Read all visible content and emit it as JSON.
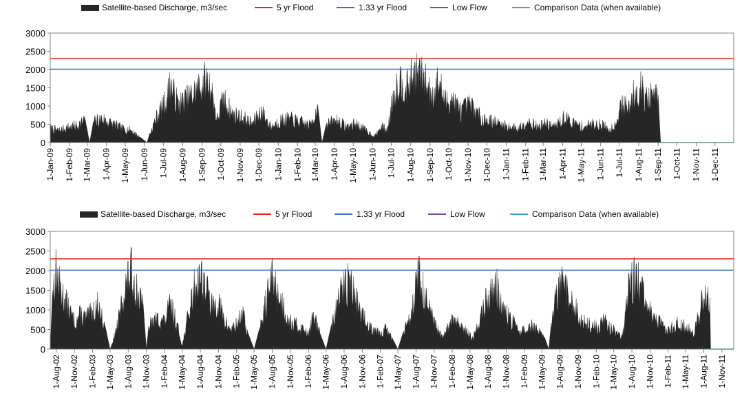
{
  "chart_data": [
    {
      "type": "area",
      "legend": [
        {
          "label": "Satellite-based Discharge, m3/sec",
          "color": "#262626",
          "kind": "area"
        },
        {
          "label": "5 yr Flood",
          "color": "#e8231b",
          "kind": "line"
        },
        {
          "label": "1.33 yr Flood",
          "color": "#3b6fc4",
          "kind": "line"
        },
        {
          "label": "Low Flow",
          "color": "#7b4aa0",
          "kind": "line"
        },
        {
          "label": "Comparison Data (when available)",
          "color": "#35a7c9",
          "kind": "line"
        }
      ],
      "ylim": [
        0,
        3000
      ],
      "yticks": [
        "0",
        "500",
        "1000",
        "1500",
        "2000",
        "2500",
        "3000"
      ],
      "xlim": [
        "2009-01-01",
        "2011-12-31"
      ],
      "xticks": [
        "1-Jan-09",
        "1-Feb-09",
        "1-Mar-09",
        "1-Apr-09",
        "1-May-09",
        "1-Jun-09",
        "1-Jul-09",
        "1-Aug-09",
        "1-Sep-09",
        "1-Oct-09",
        "1-Nov-09",
        "1-Dec-09",
        "1-Jan-10",
        "1-Feb-10",
        "1-Mar-10",
        "1-Apr-10",
        "1-May-10",
        "1-Jun-10",
        "1-Jul-10",
        "1-Aug-10",
        "1-Sep-10",
        "1-Oct-10",
        "1-Nov-10",
        "1-Dec-10",
        "1-Jan-11",
        "1-Feb-11",
        "1-Mar-11",
        "1-Apr-11",
        "1-May-11",
        "1-Jun-11",
        "1-Jul-11",
        "1-Aug-11",
        "1-Sep-11",
        "1-Oct-11",
        "1-Nov-11",
        "1-Dec-11"
      ],
      "flood_5yr": 2300,
      "flood_133yr": 2010,
      "discharge_series": {
        "name": "Satellite-based Discharge, m3/sec",
        "points": [
          [
            "2009-01-01",
            450
          ],
          [
            "2009-01-15",
            380
          ],
          [
            "2009-02-01",
            500
          ],
          [
            "2009-02-15",
            550
          ],
          [
            "2009-02-25",
            720
          ],
          [
            "2009-03-05",
            0
          ],
          [
            "2009-03-12",
            650
          ],
          [
            "2009-03-25",
            750
          ],
          [
            "2009-04-10",
            600
          ],
          [
            "2009-04-25",
            450
          ],
          [
            "2009-05-10",
            400
          ],
          [
            "2009-05-25",
            150
          ],
          [
            "2009-06-05",
            0
          ],
          [
            "2009-06-10",
            300
          ],
          [
            "2009-06-20",
            800
          ],
          [
            "2009-07-05",
            1300
          ],
          [
            "2009-07-12",
            1850
          ],
          [
            "2009-07-25",
            1200
          ],
          [
            "2009-08-10",
            1400
          ],
          [
            "2009-08-25",
            1700
          ],
          [
            "2009-09-05",
            1950
          ],
          [
            "2009-09-15",
            1800
          ],
          [
            "2009-09-25",
            700
          ],
          [
            "2009-10-05",
            1400
          ],
          [
            "2009-10-20",
            900
          ],
          [
            "2009-11-05",
            800
          ],
          [
            "2009-11-20",
            600
          ],
          [
            "2009-12-05",
            1000
          ],
          [
            "2009-12-20",
            500
          ],
          [
            "2010-01-05",
            700
          ],
          [
            "2010-01-20",
            750
          ],
          [
            "2010-02-05",
            650
          ],
          [
            "2010-02-20",
            550
          ],
          [
            "2010-03-05",
            1050
          ],
          [
            "2010-03-12",
            0
          ],
          [
            "2010-03-20",
            600
          ],
          [
            "2010-04-05",
            700
          ],
          [
            "2010-04-20",
            500
          ],
          [
            "2010-05-05",
            600
          ],
          [
            "2010-05-20",
            400
          ],
          [
            "2010-06-05",
            200
          ],
          [
            "2010-06-15",
            500
          ],
          [
            "2010-06-25",
            400
          ],
          [
            "2010-07-05",
            1600
          ],
          [
            "2010-07-15",
            2000
          ],
          [
            "2010-07-25",
            1700
          ],
          [
            "2010-08-05",
            2150
          ],
          [
            "2010-08-15",
            2200
          ],
          [
            "2010-08-25",
            1900
          ],
          [
            "2010-09-05",
            1500
          ],
          [
            "2010-09-15",
            1950
          ],
          [
            "2010-09-25",
            1300
          ],
          [
            "2010-10-05",
            1400
          ],
          [
            "2010-10-20",
            1000
          ],
          [
            "2010-11-05",
            1200
          ],
          [
            "2010-11-20",
            800
          ],
          [
            "2010-12-05",
            700
          ],
          [
            "2010-12-20",
            600
          ],
          [
            "2011-01-05",
            500
          ],
          [
            "2011-01-20",
            450
          ],
          [
            "2011-02-05",
            700
          ],
          [
            "2011-02-20",
            500
          ],
          [
            "2011-03-05",
            600
          ],
          [
            "2011-03-20",
            500
          ],
          [
            "2011-04-05",
            800
          ],
          [
            "2011-04-20",
            600
          ],
          [
            "2011-05-05",
            500
          ],
          [
            "2011-05-20",
            600
          ],
          [
            "2011-06-05",
            550
          ],
          [
            "2011-06-15",
            400
          ],
          [
            "2011-06-25",
            600
          ],
          [
            "2011-07-05",
            1200
          ],
          [
            "2011-07-15",
            1050
          ],
          [
            "2011-07-25",
            1600
          ],
          [
            "2011-08-05",
            1750
          ],
          [
            "2011-08-15",
            1300
          ],
          [
            "2011-08-25",
            1550
          ],
          [
            "2011-09-01",
            1300
          ],
          [
            "2011-09-05",
            0
          ]
        ]
      }
    },
    {
      "type": "area",
      "legend": [
        {
          "label": "Satellite-based Discharge, m3/sec",
          "color": "#262626",
          "kind": "area"
        },
        {
          "label": "5 yr Flood",
          "color": "#e8231b",
          "kind": "line"
        },
        {
          "label": "1.33 yr Flood",
          "color": "#3b6fc4",
          "kind": "line"
        },
        {
          "label": "Low Flow",
          "color": "#7b4aa0",
          "kind": "line"
        },
        {
          "label": "Comparison Data (when available)",
          "color": "#35a7c9",
          "kind": "line"
        }
      ],
      "ylim": [
        0,
        3000
      ],
      "yticks": [
        "0",
        "500",
        "1000",
        "1500",
        "2000",
        "2500",
        "3000"
      ],
      "xlim": [
        "2002-07-01",
        "2011-12-31"
      ],
      "xticks": [
        "1-Aug-02",
        "1-Nov-02",
        "1-Feb-03",
        "1-May-03",
        "1-Aug-03",
        "1-Nov-03",
        "1-Feb-04",
        "1-May-04",
        "1-Aug-04",
        "1-Nov-04",
        "1-Feb-05",
        "1-May-05",
        "1-Aug-05",
        "1-Nov-05",
        "1-Feb-06",
        "1-May-06",
        "1-Aug-06",
        "1-Nov-06",
        "1-Feb-07",
        "1-May-07",
        "1-Aug-07",
        "1-Nov-07",
        "1-Feb-08",
        "1-May-08",
        "1-Aug-08",
        "1-Nov-08",
        "1-Feb-09",
        "1-May-09",
        "1-Aug-09",
        "1-Nov-09",
        "1-Feb-10",
        "1-May-10",
        "1-Aug-10",
        "1-Nov-10",
        "1-Feb-11",
        "1-May-11",
        "1-Aug-11",
        "1-Nov-11"
      ],
      "flood_5yr": 2300,
      "flood_133yr": 2010,
      "discharge_series": {
        "name": "Satellite-based Discharge, m3/sec",
        "points": [
          [
            "2002-07-01",
            0
          ],
          [
            "2002-07-15",
            1800
          ],
          [
            "2002-08-01",
            2350
          ],
          [
            "2002-08-15",
            1900
          ],
          [
            "2002-09-01",
            1600
          ],
          [
            "2002-10-01",
            1200
          ],
          [
            "2002-11-01",
            800
          ],
          [
            "2002-12-01",
            1000
          ],
          [
            "2003-01-01",
            900
          ],
          [
            "2003-02-01",
            1100
          ],
          [
            "2003-03-01",
            1300
          ],
          [
            "2003-04-01",
            700
          ],
          [
            "2003-05-01",
            0
          ],
          [
            "2003-05-15",
            200
          ],
          [
            "2003-06-15",
            900
          ],
          [
            "2003-07-15",
            1800
          ],
          [
            "2003-08-15",
            2300
          ],
          [
            "2003-09-15",
            1700
          ],
          [
            "2003-10-15",
            1200
          ],
          [
            "2003-11-01",
            0
          ],
          [
            "2003-11-15",
            700
          ],
          [
            "2004-01-01",
            900
          ],
          [
            "2004-02-01",
            800
          ],
          [
            "2004-03-01",
            1300
          ],
          [
            "2004-04-01",
            800
          ],
          [
            "2004-05-01",
            100
          ],
          [
            "2004-06-01",
            1000
          ],
          [
            "2004-07-01",
            1800
          ],
          [
            "2004-08-01",
            2200
          ],
          [
            "2004-09-01",
            1800
          ],
          [
            "2004-10-01",
            1200
          ],
          [
            "2004-11-01",
            1400
          ],
          [
            "2004-12-01",
            800
          ],
          [
            "2005-01-01",
            600
          ],
          [
            "2005-02-01",
            700
          ],
          [
            "2005-03-01",
            1100
          ],
          [
            "2005-04-01",
            400
          ],
          [
            "2005-05-01",
            0
          ],
          [
            "2005-06-01",
            600
          ],
          [
            "2005-07-01",
            1400
          ],
          [
            "2005-08-01",
            2100
          ],
          [
            "2005-09-01",
            1600
          ],
          [
            "2005-10-01",
            1200
          ],
          [
            "2005-11-01",
            800
          ],
          [
            "2005-12-01",
            700
          ],
          [
            "2006-01-01",
            600
          ],
          [
            "2006-02-01",
            500
          ],
          [
            "2006-03-01",
            1000
          ],
          [
            "2006-04-01",
            400
          ],
          [
            "2006-05-01",
            0
          ],
          [
            "2006-06-01",
            700
          ],
          [
            "2006-07-01",
            1400
          ],
          [
            "2006-08-01",
            1900
          ],
          [
            "2006-09-01",
            2000
          ],
          [
            "2006-10-01",
            1400
          ],
          [
            "2006-11-01",
            1000
          ],
          [
            "2006-12-01",
            700
          ],
          [
            "2007-01-01",
            600
          ],
          [
            "2007-02-01",
            500
          ],
          [
            "2007-03-01",
            600
          ],
          [
            "2007-04-01",
            300
          ],
          [
            "2007-05-01",
            0
          ],
          [
            "2007-06-01",
            500
          ],
          [
            "2007-07-01",
            1000
          ],
          [
            "2007-08-01",
            1800
          ],
          [
            "2007-08-15",
            2200
          ],
          [
            "2007-09-15",
            1500
          ],
          [
            "2007-10-15",
            1000
          ],
          [
            "2007-11-15",
            600
          ],
          [
            "2007-12-15",
            300
          ],
          [
            "2008-01-15",
            700
          ],
          [
            "2008-02-15",
            900
          ],
          [
            "2008-03-15",
            600
          ],
          [
            "2008-04-15",
            500
          ],
          [
            "2008-05-15",
            300
          ],
          [
            "2008-06-15",
            800
          ],
          [
            "2008-07-15",
            1300
          ],
          [
            "2008-08-15",
            1700
          ],
          [
            "2008-09-15",
            1800
          ],
          [
            "2008-10-15",
            1200
          ],
          [
            "2008-11-15",
            900
          ],
          [
            "2008-12-15",
            700
          ],
          [
            "2009-01-15",
            500
          ],
          [
            "2009-02-15",
            600
          ],
          [
            "2009-03-15",
            700
          ],
          [
            "2009-04-15",
            500
          ],
          [
            "2009-05-15",
            300
          ],
          [
            "2009-06-05",
            0
          ],
          [
            "2009-06-20",
            800
          ],
          [
            "2009-07-15",
            1600
          ],
          [
            "2009-08-15",
            1900
          ],
          [
            "2009-09-15",
            1500
          ],
          [
            "2009-10-15",
            1200
          ],
          [
            "2009-11-15",
            900
          ],
          [
            "2009-12-15",
            700
          ],
          [
            "2010-01-15",
            700
          ],
          [
            "2010-02-15",
            600
          ],
          [
            "2010-03-15",
            900
          ],
          [
            "2010-04-15",
            600
          ],
          [
            "2010-05-15",
            500
          ],
          [
            "2010-06-15",
            400
          ],
          [
            "2010-07-15",
            1700
          ],
          [
            "2010-08-15",
            2200
          ],
          [
            "2010-09-15",
            1800
          ],
          [
            "2010-10-15",
            1300
          ],
          [
            "2010-11-15",
            1000
          ],
          [
            "2010-12-15",
            800
          ],
          [
            "2011-01-15",
            600
          ],
          [
            "2011-02-15",
            650
          ],
          [
            "2011-03-15",
            700
          ],
          [
            "2011-04-15",
            750
          ],
          [
            "2011-05-15",
            600
          ],
          [
            "2011-06-15",
            500
          ],
          [
            "2011-07-15",
            1200
          ],
          [
            "2011-08-01",
            1700
          ],
          [
            "2011-08-15",
            1500
          ],
          [
            "2011-09-01",
            1300
          ],
          [
            "2011-09-05",
            0
          ]
        ]
      }
    }
  ]
}
